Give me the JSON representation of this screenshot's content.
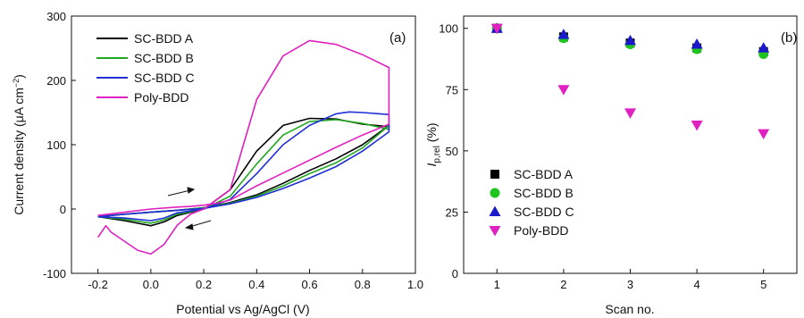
{
  "chart_data": [
    {
      "type": "line",
      "panel_label": "(a)",
      "xlabel": "Potential vs Ag/AgCl (V)",
      "ylabel": "Current density (μA cm",
      "ylabel_sup": "−2",
      "ylabel_close": ")",
      "xlim": [
        -0.3,
        1.0
      ],
      "ylim": [
        -100,
        300
      ],
      "x_ticks": [
        "-0.2",
        "0.0",
        "0.2",
        "0.4",
        "0.6",
        "0.8",
        "1.0"
      ],
      "y_ticks": [
        "-100",
        "0",
        "100",
        "200",
        "300"
      ],
      "legend_position": "top-left",
      "colors": {
        "SC-BDD A": "#000000",
        "SC-BDD B": "#1fa81f",
        "SC-BDD C": "#1f2ed6",
        "Poly-BDD": "#e020c0"
      },
      "series": [
        {
          "name": "SC-BDD A",
          "x": [
            -0.2,
            -0.1,
            0.0,
            0.05,
            0.1,
            0.2,
            0.3,
            0.4,
            0.5,
            0.6,
            0.7,
            0.8,
            0.9,
            0.9,
            0.8,
            0.7,
            0.6,
            0.5,
            0.4,
            0.3,
            0.2,
            0.1,
            0.0,
            -0.1,
            -0.2
          ],
          "y": [
            -12,
            -18,
            -26,
            -20,
            -10,
            0,
            30,
            90,
            130,
            141,
            140,
            132,
            128,
            130,
            100,
            78,
            60,
            40,
            22,
            10,
            2,
            -2,
            -5,
            -8,
            -12
          ]
        },
        {
          "name": "SC-BDD B",
          "x": [
            -0.2,
            -0.1,
            0.0,
            0.05,
            0.1,
            0.2,
            0.3,
            0.4,
            0.5,
            0.6,
            0.7,
            0.8,
            0.9,
            0.9,
            0.8,
            0.7,
            0.6,
            0.5,
            0.4,
            0.3,
            0.2,
            0.1,
            0.0,
            -0.1,
            -0.2
          ],
          "y": [
            -12,
            -16,
            -22,
            -17,
            -8,
            0,
            20,
            70,
            115,
            136,
            139,
            133,
            124,
            130,
            95,
            72,
            55,
            36,
            20,
            9,
            2,
            -2,
            -5,
            -8,
            -12
          ]
        },
        {
          "name": "SC-BDD C",
          "x": [
            -0.2,
            -0.1,
            0.0,
            0.05,
            0.1,
            0.2,
            0.3,
            0.4,
            0.5,
            0.6,
            0.7,
            0.75,
            0.8,
            0.9,
            0.9,
            0.8,
            0.7,
            0.6,
            0.5,
            0.4,
            0.3,
            0.2,
            0.1,
            0.0,
            -0.1,
            -0.2
          ],
          "y": [
            -12,
            -14,
            -18,
            -14,
            -6,
            0,
            15,
            55,
            100,
            130,
            148,
            151,
            150,
            147,
            120,
            90,
            66,
            48,
            32,
            18,
            8,
            1,
            -2,
            -5,
            -8,
            -12
          ]
        },
        {
          "name": "Poly-BDD",
          "x": [
            -0.2,
            -0.17,
            -0.15,
            -0.1,
            -0.05,
            0.0,
            0.05,
            0.1,
            0.15,
            0.2,
            0.3,
            0.4,
            0.5,
            0.6,
            0.7,
            0.8,
            0.9,
            0.9,
            0.8,
            0.7,
            0.6,
            0.5,
            0.4,
            0.3,
            0.25,
            0.2,
            0.15,
            0.1,
            0.0,
            -0.1,
            -0.2
          ],
          "y": [
            -44,
            -26,
            -36,
            -50,
            -64,
            -70,
            -55,
            -25,
            -8,
            0,
            30,
            170,
            238,
            262,
            256,
            240,
            220,
            132,
            115,
            96,
            76,
            56,
            36,
            14,
            9,
            6,
            4,
            3,
            0,
            -5,
            -10
          ]
        }
      ]
    },
    {
      "type": "scatter",
      "panel_label": "(b)",
      "xlabel": "Scan no.",
      "ylabel_main": "I",
      "ylabel_sub": "p,rel",
      "ylabel_unit": " (%)",
      "xlim": [
        0.5,
        5.5
      ],
      "ylim": [
        0,
        105
      ],
      "x_ticks": [
        "1",
        "2",
        "3",
        "4",
        "5"
      ],
      "y_ticks": [
        "0",
        "25",
        "50",
        "75",
        "100"
      ],
      "legend_position": "bottom-left",
      "categories": [
        1,
        2,
        3,
        4,
        5
      ],
      "series": [
        {
          "name": "SC-BDD A",
          "marker": "square",
          "color": "#000000",
          "values": [
            100,
            96.5,
            94,
            92,
            90.5
          ]
        },
        {
          "name": "SC-BDD B",
          "marker": "circle",
          "color": "#1fc41f",
          "values": [
            100,
            96,
            93.5,
            91.5,
            89.5
          ]
        },
        {
          "name": "SC-BDD C",
          "marker": "triangle-up",
          "color": "#1a1acc",
          "values": [
            100,
            97.5,
            95,
            93.5,
            92
          ]
        },
        {
          "name": "Poly-BDD",
          "marker": "triangle-down",
          "color": "#e020c0",
          "values": [
            100,
            75,
            65.5,
            60.5,
            57
          ]
        }
      ]
    }
  ]
}
